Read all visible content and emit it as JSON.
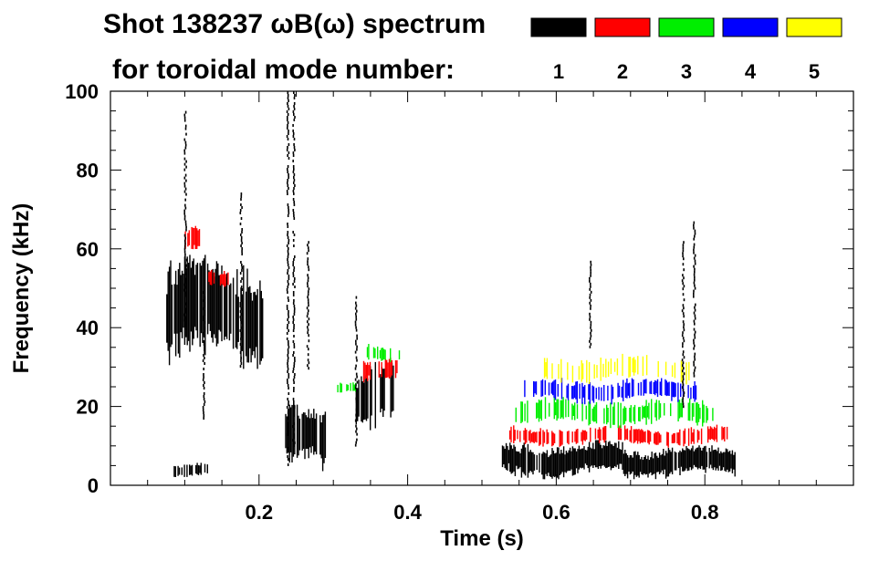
{
  "chart_data": {
    "type": "heatmap",
    "title": "Shot 138237 ωB(ω) spectrum",
    "subtitle": "for toroidal mode number:",
    "xlabel": "Time (s)",
    "ylabel": "Frequency (kHz)",
    "xlim": [
      0.0,
      1.0
    ],
    "ylim": [
      0,
      100
    ],
    "x_ticks": [
      0.2,
      0.4,
      0.6,
      0.8
    ],
    "x_tick_labels": [
      "0.2",
      "0.4",
      "0.6",
      "0.8"
    ],
    "y_ticks": [
      0,
      20,
      40,
      60,
      80,
      100
    ],
    "y_tick_labels": [
      "0",
      "20",
      "40",
      "60",
      "80",
      "100"
    ],
    "legend": [
      {
        "n": "1",
        "color": "#000000"
      },
      {
        "n": "2",
        "color": "#ff0000"
      },
      {
        "n": "3",
        "color": "#00ee00"
      },
      {
        "n": "4",
        "color": "#0000ff"
      },
      {
        "n": "5",
        "color": "#ffff00"
      }
    ],
    "legend_position": "top-right",
    "regions": [
      {
        "n": "1",
        "t0": 0.075,
        "t1": 0.205,
        "f0": 30,
        "f1": 58,
        "density": 0.85
      },
      {
        "n": "1",
        "t0": 0.235,
        "t1": 0.29,
        "f0": 3,
        "f1": 20,
        "density": 0.9
      },
      {
        "n": "1",
        "t0": 0.33,
        "t1": 0.38,
        "f0": 12,
        "f1": 32,
        "density": 0.75
      },
      {
        "n": "1",
        "t0": 0.525,
        "t1": 0.69,
        "f0": 2,
        "f1": 11,
        "density": 0.92
      },
      {
        "n": "1",
        "t0": 0.69,
        "t1": 0.84,
        "f0": 2,
        "f1": 10,
        "density": 0.9
      },
      {
        "n": "1",
        "t0": 0.085,
        "t1": 0.13,
        "f0": 2,
        "f1": 6,
        "density": 0.6
      },
      {
        "n": "2",
        "t0": 0.1,
        "t1": 0.12,
        "f0": 58,
        "f1": 66,
        "density": 0.6
      },
      {
        "n": "2",
        "t0": 0.13,
        "t1": 0.16,
        "f0": 50,
        "f1": 55,
        "density": 0.6
      },
      {
        "n": "2",
        "t0": 0.34,
        "t1": 0.385,
        "f0": 26,
        "f1": 32,
        "density": 0.5
      },
      {
        "n": "2",
        "t0": 0.535,
        "t1": 0.83,
        "f0": 10,
        "f1": 15,
        "density": 0.55
      },
      {
        "n": "3",
        "t0": 0.3,
        "t1": 0.33,
        "f0": 23,
        "f1": 26,
        "density": 0.4
      },
      {
        "n": "3",
        "t0": 0.345,
        "t1": 0.39,
        "f0": 31,
        "f1": 36,
        "density": 0.4
      },
      {
        "n": "3",
        "t0": 0.545,
        "t1": 0.81,
        "f0": 15,
        "f1": 22,
        "density": 0.5
      },
      {
        "n": "4",
        "t0": 0.555,
        "t1": 0.8,
        "f0": 21,
        "f1": 27,
        "density": 0.45
      },
      {
        "n": "5",
        "t0": 0.58,
        "t1": 0.78,
        "f0": 26,
        "f1": 33,
        "density": 0.3
      }
    ],
    "spikes": [
      {
        "n": "1",
        "t": 0.1,
        "f0": 40,
        "f1": 95
      },
      {
        "n": "1",
        "t": 0.175,
        "f0": 30,
        "f1": 75
      },
      {
        "n": "1",
        "t": 0.238,
        "f0": 5,
        "f1": 100
      },
      {
        "n": "1",
        "t": 0.246,
        "f0": 10,
        "f1": 100
      },
      {
        "n": "1",
        "t": 0.125,
        "f0": 17,
        "f1": 50
      },
      {
        "n": "1",
        "t": 0.33,
        "f0": 10,
        "f1": 48
      },
      {
        "n": "1",
        "t": 0.265,
        "f0": 30,
        "f1": 62
      },
      {
        "n": "1",
        "t": 0.77,
        "f0": 20,
        "f1": 62
      },
      {
        "n": "1",
        "t": 0.785,
        "f0": 25,
        "f1": 67
      },
      {
        "n": "1",
        "t": 0.645,
        "f0": 35,
        "f1": 57
      }
    ]
  }
}
